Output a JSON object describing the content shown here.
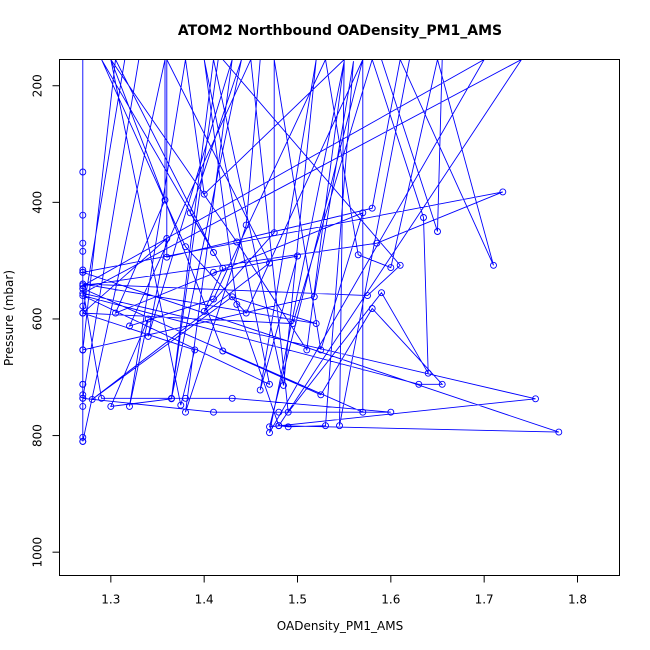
{
  "chart_data": {
    "type": "line",
    "title": "ATOM2 Northbound OADensity_PM1_AMS",
    "xlabel": "OADensity_PM1_AMS",
    "ylabel": "Pressure (mbar)",
    "xlim": [
      1.245,
      1.845
    ],
    "ylim": [
      1040,
      155
    ],
    "y_reversed": true,
    "x_ticks": [
      {
        "value": 1.3,
        "label": "1.3"
      },
      {
        "value": 1.4,
        "label": "1.4"
      },
      {
        "value": 1.5,
        "label": "1.5"
      },
      {
        "value": 1.6,
        "label": "1.6"
      },
      {
        "value": 1.7,
        "label": "1.7"
      },
      {
        "value": 1.8,
        "label": "1.8"
      }
    ],
    "y_ticks": [
      {
        "value": 200,
        "label": "200"
      },
      {
        "value": 400,
        "label": "400"
      },
      {
        "value": 600,
        "label": "600"
      },
      {
        "value": 800,
        "label": "800"
      },
      {
        "value": 1000,
        "label": "1000"
      }
    ],
    "marker": "open-circle",
    "grid": false,
    "colors": {
      "series": "#0000ff",
      "axis": "#000000",
      "background": "#ffffff"
    },
    "series": [
      {
        "points": [
          [
            1.27,
            155
          ],
          [
            1.27,
            810
          ],
          [
            1.27,
            155
          ],
          [
            1.27,
            803
          ],
          [
            1.27,
            155
          ],
          [
            1.27,
            736
          ],
          [
            1.27,
            155
          ],
          [
            1.27,
            712
          ],
          [
            1.27,
            155
          ],
          [
            1.27,
            653
          ],
          [
            1.27,
            155
          ],
          [
            1.27,
            590
          ],
          [
            1.27,
            155
          ],
          [
            1.27,
            520
          ],
          [
            1.27,
            155
          ],
          [
            1.27,
            348
          ],
          [
            1.27,
            422
          ],
          [
            1.27,
            470
          ],
          [
            1.27,
            484
          ],
          [
            1.27,
            516
          ],
          [
            1.27,
            548
          ],
          [
            1.27,
            578
          ],
          [
            1.27,
            653
          ],
          [
            1.27,
            712
          ],
          [
            1.27,
            730
          ],
          [
            1.27,
            750
          ],
          [
            1.27,
            810
          ],
          [
            1.358,
            155
          ],
          [
            1.358,
            396
          ],
          [
            1.305,
            590
          ],
          [
            1.57,
            418
          ],
          [
            1.525,
            653
          ],
          [
            1.475,
            155
          ],
          [
            1.475,
            452
          ],
          [
            1.4,
            587
          ],
          [
            1.42,
            513
          ],
          [
            1.29,
            155
          ],
          [
            1.38,
            476
          ],
          [
            1.445,
            590
          ],
          [
            1.57,
            155
          ],
          [
            1.57,
            760
          ],
          [
            1.27,
            548
          ],
          [
            1.29,
            736
          ],
          [
            1.38,
            736
          ],
          [
            1.43,
            736
          ],
          [
            1.6,
            760
          ],
          [
            1.48,
            760
          ],
          [
            1.41,
            760
          ],
          [
            1.27,
            736
          ],
          [
            1.33,
            155
          ],
          [
            1.415,
            155
          ],
          [
            1.365,
            737
          ],
          [
            1.3,
            750
          ],
          [
            1.34,
            600
          ],
          [
            1.32,
            750
          ],
          [
            1.38,
            155
          ],
          [
            1.4,
            386
          ],
          [
            1.55,
            155
          ],
          [
            1.545,
            783
          ],
          [
            1.62,
            155
          ],
          [
            1.655,
            155
          ],
          [
            1.65,
            450
          ],
          [
            1.59,
            155
          ],
          [
            1.46,
            155
          ],
          [
            1.445,
            439
          ],
          [
            1.38,
            760
          ],
          [
            1.43,
            155
          ],
          [
            1.34,
            630
          ],
          [
            1.36,
            462
          ],
          [
            1.27,
            590
          ],
          [
            1.495,
            608
          ],
          [
            1.58,
            155
          ],
          [
            1.635,
            426
          ],
          [
            1.64,
            693
          ],
          [
            1.59,
            555
          ],
          [
            1.49,
            760
          ],
          [
            1.45,
            155
          ],
          [
            1.32,
            612
          ],
          [
            1.41,
            566
          ],
          [
            1.53,
            155
          ],
          [
            1.565,
            490
          ],
          [
            1.6,
            512
          ],
          [
            1.65,
            155
          ],
          [
            1.71,
            508
          ],
          [
            1.61,
            155
          ],
          [
            1.58,
            410
          ],
          [
            1.36,
            494
          ],
          [
            1.36,
            155
          ],
          [
            1.47,
            504
          ],
          [
            1.28,
            738
          ],
          [
            1.43,
            562
          ],
          [
            1.52,
            608
          ],
          [
            1.27,
            540
          ],
          [
            1.575,
            560
          ],
          [
            1.61,
            508
          ],
          [
            1.42,
            155
          ],
          [
            1.57,
            155
          ],
          [
            1.47,
            785
          ],
          [
            1.755,
            737
          ],
          [
            1.27,
            556
          ],
          [
            1.74,
            155
          ],
          [
            1.48,
            783
          ],
          [
            1.78,
            794
          ],
          [
            1.27,
            520
          ],
          [
            1.72,
            382
          ],
          [
            1.585,
            470
          ],
          [
            1.27,
            543
          ],
          [
            1.7,
            155
          ],
          [
            1.47,
            795
          ],
          [
            1.55,
            158
          ],
          [
            1.51,
            653
          ],
          [
            1.435,
            468
          ],
          [
            1.3,
            155
          ],
          [
            1.375,
            748
          ],
          [
            1.39,
            653
          ],
          [
            1.27,
            590
          ],
          [
            1.315,
            155
          ],
          [
            1.3,
            155
          ],
          [
            1.42,
            655
          ],
          [
            1.525,
            730
          ],
          [
            1.58,
            582
          ],
          [
            1.655,
            712
          ],
          [
            1.63,
            712
          ],
          [
            1.27,
            560
          ],
          [
            1.47,
            712
          ],
          [
            1.4,
            155
          ],
          [
            1.435,
            575
          ],
          [
            1.48,
            783
          ],
          [
            1.49,
            785
          ],
          [
            1.53,
            783
          ],
          [
            1.56,
            158
          ],
          [
            1.518,
            562
          ],
          [
            1.27,
            653
          ],
          [
            1.305,
            155
          ],
          [
            1.41,
            486
          ],
          [
            1.385,
            418
          ],
          [
            1.44,
            155
          ],
          [
            1.365,
            736
          ],
          [
            1.41,
            155
          ],
          [
            1.485,
            714
          ],
          [
            1.52,
            155
          ],
          [
            1.46,
            722
          ],
          [
            1.5,
            492
          ],
          [
            1.41,
            520
          ]
        ]
      }
    ]
  }
}
